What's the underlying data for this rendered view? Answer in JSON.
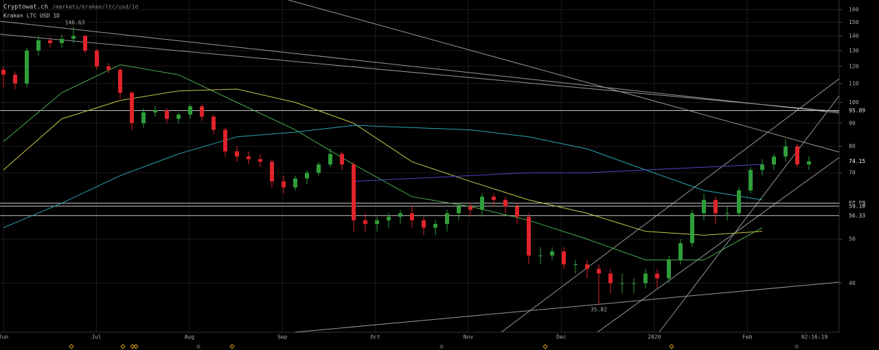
{
  "header": {
    "site": "Cryptowat.ch",
    "path": "/markets/kraken/ltc/usd/1d",
    "market": "Kraken LTC USD 1D"
  },
  "chart_data": {
    "type": "candlestick",
    "log_scale": true,
    "grid": true,
    "up_color": "#2f9e3a",
    "down_color": "#e0242b",
    "ylim": [
      31.2,
      168
    ],
    "yticks": [
      40,
      50,
      60,
      70,
      80,
      90,
      100,
      110,
      120,
      130,
      140,
      150,
      160
    ],
    "x_labels": [
      "Jun",
      "Jul",
      "Aug",
      "Sep",
      "Oct",
      "Nov",
      "Dec",
      "2020",
      "Feb"
    ],
    "time_label": "02:16:19",
    "open": [
      118,
      115,
      110,
      130,
      137,
      135,
      138,
      140,
      130,
      120,
      118,
      105,
      90,
      95,
      96,
      92,
      94,
      98,
      93,
      87,
      78,
      76,
      75,
      74,
      67,
      65,
      68,
      70,
      73,
      77,
      73,
      55,
      54,
      55,
      56,
      57,
      55,
      53,
      54,
      57,
      59,
      58,
      62,
      61,
      59,
      56,
      46,
      46,
      47,
      44,
      44,
      43,
      42,
      40,
      40,
      40,
      42,
      41,
      45,
      49,
      57,
      61,
      57,
      57,
      64,
      71,
      73,
      76,
      80,
      73
    ],
    "high": [
      120,
      117,
      132,
      140,
      139,
      141,
      146.63,
      141,
      131,
      122,
      119,
      106,
      97,
      98,
      97,
      95,
      99,
      99,
      94,
      88,
      80,
      78,
      77,
      75,
      69,
      69,
      71,
      74,
      79,
      78,
      74,
      57,
      56,
      57,
      58,
      59,
      56,
      55,
      58,
      60,
      60,
      63,
      63,
      62,
      60,
      57,
      48,
      48,
      48,
      45,
      45,
      44,
      43,
      42,
      41,
      43,
      43,
      46,
      50,
      58,
      63,
      62,
      59,
      65,
      72,
      75,
      77,
      83,
      81,
      76
    ],
    "low": [
      108,
      107,
      108,
      127,
      132,
      132,
      135,
      128,
      118,
      116,
      102,
      87,
      88,
      93,
      90,
      90,
      92,
      91,
      85,
      76,
      74,
      73,
      72,
      65,
      63,
      64,
      66,
      69,
      72,
      71,
      52,
      52,
      52,
      53,
      54,
      53,
      51,
      51,
      52,
      55,
      56,
      56,
      59,
      57,
      54,
      44,
      44,
      45,
      43,
      42,
      41,
      35.82,
      38,
      38,
      38,
      39,
      39,
      40,
      44,
      48,
      55,
      54,
      55,
      56,
      63,
      69,
      71,
      74,
      72,
      71
    ],
    "close": [
      115,
      110,
      130,
      137,
      135,
      138,
      140,
      130,
      120,
      118,
      105,
      90,
      95,
      96,
      92,
      94,
      98,
      93,
      87,
      78,
      76,
      75,
      74,
      67,
      65,
      68,
      70,
      73,
      77,
      73,
      55,
      54,
      55,
      56,
      57,
      55,
      53,
      54,
      57,
      59,
      58,
      62,
      61,
      59,
      56,
      46,
      46,
      47,
      44,
      44,
      43,
      42,
      40,
      40,
      40,
      42,
      41,
      45,
      49,
      57,
      61,
      57,
      57,
      64,
      71,
      73,
      76,
      80,
      73,
      74.15
    ],
    "moving_averages": [
      {
        "color": "#4caf50",
        "values": [
          82,
          105,
          121,
          115,
          100,
          87,
          73,
          62,
          59,
          55,
          50,
          45,
          45,
          53
        ]
      },
      {
        "color": "#c9c94a",
        "values": [
          71,
          92,
          101,
          106,
          107,
          100,
          90,
          74,
          67,
          61,
          57,
          52,
          51,
          52
        ]
      },
      {
        "color": "#2aa6b8",
        "values": [
          53,
          60,
          69,
          77,
          84,
          86,
          89,
          88,
          87,
          84,
          79,
          71,
          64,
          61
        ]
      },
      {
        "color": "#4a4ac8",
        "values": [
          null,
          null,
          null,
          null,
          null,
          null,
          67,
          68,
          69,
          70,
          70,
          71,
          72,
          73
        ]
      }
    ],
    "levels": [
      95.89,
      {
        "value": 60,
        "label": "60.00"
      },
      {
        "value": 59.1,
        "label": "59.10"
      },
      56.33
    ]
  }
}
